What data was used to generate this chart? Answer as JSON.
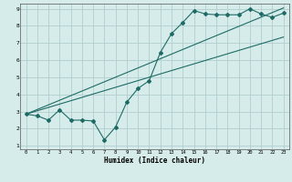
{
  "xlabel": "Humidex (Indice chaleur)",
  "xlim": [
    -0.5,
    23.5
  ],
  "ylim": [
    0.8,
    9.3
  ],
  "xticks": [
    0,
    1,
    2,
    3,
    4,
    5,
    6,
    7,
    8,
    9,
    10,
    11,
    12,
    13,
    14,
    15,
    16,
    17,
    18,
    19,
    20,
    21,
    22,
    23
  ],
  "yticks": [
    1,
    2,
    3,
    4,
    5,
    6,
    7,
    8,
    9
  ],
  "bg_color": "#d6ecea",
  "grid_color": "#b2cece",
  "line_color": "#1e6b65",
  "line1_x": [
    0,
    1,
    2,
    3,
    4,
    5,
    6,
    7,
    8,
    9,
    10,
    11,
    12,
    13,
    14,
    15,
    16,
    17,
    18,
    19,
    20,
    21,
    22,
    23
  ],
  "line1_y": [
    2.85,
    2.75,
    2.5,
    3.1,
    2.5,
    2.5,
    2.45,
    1.35,
    2.1,
    3.55,
    4.35,
    4.8,
    6.45,
    7.55,
    8.2,
    8.9,
    8.7,
    8.65,
    8.65,
    8.65,
    9.0,
    8.7,
    8.5,
    8.75
  ],
  "line2_x": [
    0,
    23
  ],
  "line2_y": [
    2.85,
    7.35
  ],
  "line3_x": [
    0,
    23
  ],
  "line3_y": [
    2.85,
    9.05
  ]
}
